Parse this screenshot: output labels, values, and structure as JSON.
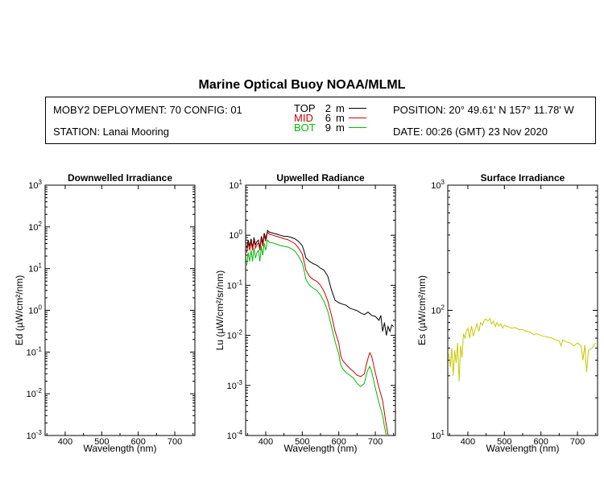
{
  "header": {
    "title": "Marine Optical Buoy NOAA/MLML",
    "deployment": "MOBY2 DEPLOYMENT: 70 CONFIG: 01",
    "station": "STATION: Lanai Mooring",
    "position": "POSITION: 20° 49.61' N   157° 11.78' W",
    "date": "DATE: 00:26 (GMT) 23 Nov 2020",
    "depths": [
      {
        "label": "TOP",
        "value": "2",
        "unit": "m",
        "color": "#000000"
      },
      {
        "label": "MID",
        "value": "6",
        "unit": "m",
        "color": "#cc0000"
      },
      {
        "label": "BOT",
        "value": "9",
        "unit": "m",
        "color": "#00bb00"
      }
    ]
  },
  "chart_data": [
    {
      "type": "line",
      "title": "Downwelled Irradiance",
      "xlabel": "Wavelength (nm)",
      "ylabel": "Ed  (µW/cm²/nm)",
      "xlim": [
        345,
        755
      ],
      "ylim_log10": [
        -3,
        3
      ],
      "scale": "log",
      "xticks": [
        400,
        500,
        600,
        700
      ],
      "yticks_log10": [
        -3,
        -2,
        -1,
        0,
        1,
        2,
        3
      ],
      "series": []
    },
    {
      "type": "line",
      "title": "Upwelled Radiance",
      "xlabel": "Wavelength (nm)",
      "ylabel": "Lu  (µW/cm²/sr/nm)",
      "xlim": [
        345,
        755
      ],
      "ylim_log10": [
        -4,
        1
      ],
      "scale": "log",
      "xticks": [
        400,
        500,
        600,
        700
      ],
      "yticks_log10": [
        -4,
        -3,
        -2,
        -1,
        0,
        1
      ],
      "series": [
        {
          "color": "#000000",
          "x": [
            348,
            352,
            356,
            360,
            364,
            368,
            372,
            376,
            380,
            384,
            388,
            392,
            396,
            400,
            405,
            410,
            420,
            430,
            440,
            450,
            460,
            470,
            480,
            490,
            500,
            505,
            510,
            520,
            530,
            540,
            550,
            560,
            570,
            580,
            590,
            600,
            610,
            620,
            630,
            640,
            650,
            660,
            670,
            680,
            690,
            700,
            710,
            715,
            720,
            725,
            730,
            735,
            740,
            745,
            750
          ],
          "y": [
            0.55,
            0.8,
            0.6,
            0.85,
            0.55,
            0.9,
            0.65,
            0.75,
            0.8,
            0.55,
            0.95,
            0.7,
            1.1,
            0.85,
            1.25,
            1.15,
            1.1,
            1.05,
            1.0,
            0.95,
            0.95,
            0.9,
            0.85,
            0.75,
            0.62,
            0.48,
            0.35,
            0.3,
            0.27,
            0.25,
            0.22,
            0.2,
            0.15,
            0.08,
            0.05,
            0.045,
            0.042,
            0.04,
            0.035,
            0.033,
            0.031,
            0.028,
            0.026,
            0.029,
            0.025,
            0.024,
            0.02,
            0.025,
            0.012,
            0.018,
            0.01,
            0.015,
            0.012,
            0.016,
            0.015
          ]
        },
        {
          "color": "#cc0000",
          "x": [
            348,
            352,
            356,
            360,
            364,
            368,
            372,
            376,
            380,
            384,
            388,
            392,
            396,
            400,
            405,
            410,
            420,
            430,
            440,
            450,
            460,
            470,
            480,
            490,
            500,
            505,
            510,
            520,
            530,
            540,
            550,
            560,
            570,
            580,
            590,
            600,
            605,
            610,
            620,
            630,
            640,
            650,
            660,
            670,
            675,
            680,
            685,
            690,
            700,
            710,
            720,
            725,
            730,
            735
          ],
          "y": [
            0.45,
            0.7,
            0.5,
            0.75,
            0.5,
            0.8,
            0.55,
            0.65,
            0.7,
            0.5,
            0.85,
            0.6,
            1.0,
            0.75,
            1.15,
            1.05,
            1.0,
            0.95,
            0.9,
            0.85,
            0.82,
            0.75,
            0.68,
            0.55,
            0.42,
            0.3,
            0.2,
            0.15,
            0.13,
            0.12,
            0.1,
            0.075,
            0.048,
            0.025,
            0.012,
            0.007,
            0.004,
            0.0032,
            0.0026,
            0.0022,
            0.0019,
            0.0016,
            0.0015,
            0.0017,
            0.0025,
            0.0035,
            0.0045,
            0.0038,
            0.0018,
            0.0009,
            0.0005,
            0.00028,
            0.00016,
            0.0001
          ]
        },
        {
          "color": "#00bb00",
          "x": [
            348,
            352,
            356,
            360,
            364,
            368,
            372,
            376,
            380,
            384,
            388,
            392,
            396,
            400,
            405,
            410,
            420,
            430,
            440,
            450,
            460,
            470,
            480,
            490,
            500,
            505,
            510,
            520,
            530,
            540,
            550,
            560,
            570,
            580,
            590,
            600,
            605,
            610,
            620,
            630,
            640,
            650,
            660,
            670,
            675,
            680,
            685,
            690,
            700,
            710,
            720,
            725,
            730,
            735
          ],
          "y": [
            0.25,
            0.45,
            0.3,
            0.5,
            0.3,
            0.55,
            0.35,
            0.45,
            0.5,
            0.3,
            0.6,
            0.4,
            0.7,
            0.5,
            0.8,
            0.72,
            0.7,
            0.66,
            0.62,
            0.6,
            0.58,
            0.54,
            0.48,
            0.38,
            0.28,
            0.2,
            0.13,
            0.1,
            0.088,
            0.078,
            0.064,
            0.047,
            0.03,
            0.015,
            0.0075,
            0.0042,
            0.0026,
            0.0022,
            0.0018,
            0.0016,
            0.0014,
            0.0011,
            0.00095,
            0.0011,
            0.0016,
            0.0021,
            0.0024,
            0.0019,
            0.0009,
            0.00045,
            0.00025,
            0.00015,
            0.0001,
            0.0001
          ]
        }
      ]
    },
    {
      "type": "line",
      "title": "Surface Irradiance",
      "xlabel": "Wavelength (nm)",
      "ylabel": "Es  (µW/cm²/nm)",
      "xlim": [
        345,
        755
      ],
      "ylim_log10": [
        1,
        3
      ],
      "scale": "log",
      "xticks": [
        400,
        500,
        600,
        700
      ],
      "yticks_log10": [
        1,
        2,
        3
      ],
      "series": [
        {
          "color": "#c8c800",
          "x": [
            348,
            352,
            356,
            360,
            364,
            368,
            372,
            376,
            380,
            384,
            388,
            392,
            396,
            400,
            405,
            410,
            415,
            420,
            425,
            430,
            435,
            440,
            445,
            450,
            455,
            460,
            465,
            470,
            475,
            480,
            485,
            490,
            495,
            500,
            510,
            520,
            530,
            540,
            550,
            560,
            570,
            580,
            590,
            600,
            610,
            620,
            630,
            640,
            650,
            655,
            660,
            670,
            680,
            690,
            700,
            710,
            715,
            720,
            725,
            730,
            740,
            750
          ],
          "y": [
            45,
            35,
            50,
            30,
            48,
            38,
            55,
            27,
            52,
            42,
            65,
            60,
            68,
            72,
            60,
            75,
            62,
            70,
            78,
            68,
            80,
            76,
            84,
            85,
            82,
            86,
            78,
            82,
            74,
            80,
            75,
            78,
            72,
            76,
            74,
            72,
            73,
            70,
            70,
            68,
            67,
            64,
            65,
            63,
            62,
            61,
            60,
            58,
            57,
            52,
            58,
            56,
            55,
            52,
            55,
            52,
            40,
            53,
            32,
            48,
            50,
            55
          ]
        }
      ]
    }
  ]
}
